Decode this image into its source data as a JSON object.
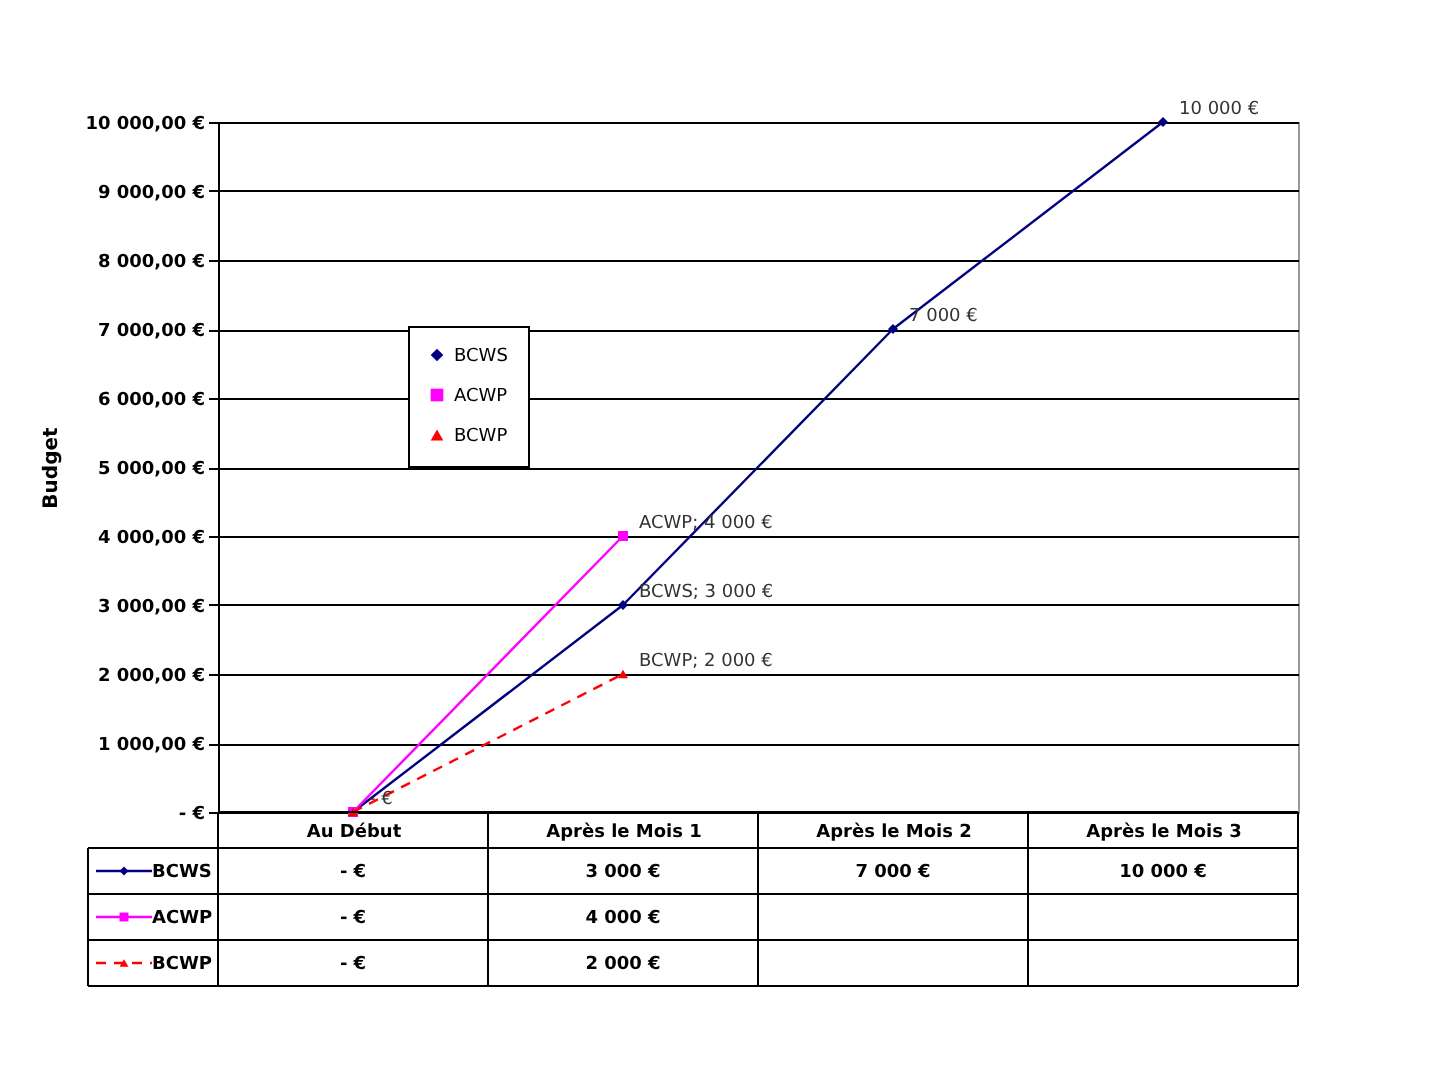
{
  "chart_data": {
    "type": "line",
    "ylabel": "Budget",
    "categories": [
      "Au Début",
      "Après le Mois 1",
      "Après le Mois 2",
      "Après le Mois 3"
    ],
    "series": [
      {
        "name": "BCWS",
        "color": "#000080",
        "values": [
          0,
          3000,
          7000,
          10000
        ],
        "marker": "diamond",
        "line_style": "solid",
        "value_labels": [
          "-   €",
          "3 000 €",
          "7 000 €",
          "10 000 €"
        ]
      },
      {
        "name": "ACWP",
        "color": "#ff00ff",
        "values": [
          0,
          4000,
          null,
          null
        ],
        "marker": "square",
        "line_style": "solid",
        "value_labels": [
          "-   €",
          "4 000 €",
          null,
          null
        ]
      },
      {
        "name": "BCWP",
        "color": "#ff0000",
        "values": [
          0,
          2000,
          null,
          null
        ],
        "marker": "triangle",
        "line_style": "dashed",
        "value_labels": [
          "-   €",
          "2 000 €",
          null,
          null
        ]
      }
    ],
    "ylim": [
      0,
      10000
    ],
    "yticks": [
      {
        "value": 0,
        "label": "-   €"
      },
      {
        "value": 1000,
        "label": "1 000,00 €"
      },
      {
        "value": 2000,
        "label": "2 000,00 €"
      },
      {
        "value": 3000,
        "label": "3 000,00 €"
      },
      {
        "value": 4000,
        "label": "4 000,00 €"
      },
      {
        "value": 5000,
        "label": "5 000,00 €"
      },
      {
        "value": 6000,
        "label": "6 000,00 €"
      },
      {
        "value": 7000,
        "label": "7 000,00 €"
      },
      {
        "value": 8000,
        "label": "8 000,00 €"
      },
      {
        "value": 9000,
        "label": "9 000,00 €"
      },
      {
        "value": 10000,
        "label": "10 000,00 €"
      }
    ],
    "annotations": [
      {
        "text": "-   €",
        "x": "Au Début",
        "y": 0
      },
      {
        "text": "BCWS; 3 000 €",
        "x": "Après le Mois 1",
        "y": 3000
      },
      {
        "text": "ACWP; 4 000 €",
        "x": "Après le Mois 1",
        "y": 4000
      },
      {
        "text": "BCWP; 2 000 €",
        "x": "Après le Mois 1",
        "y": 2000
      },
      {
        "text": "7 000 €",
        "x": "Après le Mois 2",
        "y": 7000
      },
      {
        "text": "10 000 €",
        "x": "Après le Mois 3",
        "y": 10000
      }
    ],
    "grid": "y",
    "legend": "left"
  }
}
